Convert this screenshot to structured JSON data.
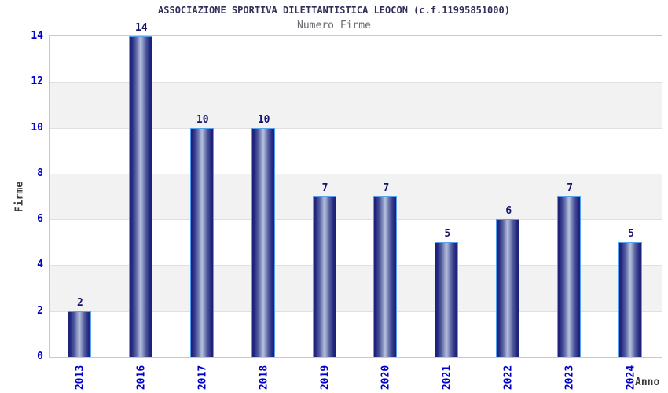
{
  "title": "ASSOCIAZIONE SPORTIVA DILETTANTISTICA LEOCON (c.f.11995851000)",
  "subtitle": "Numero Firme",
  "chart_data": {
    "type": "bar",
    "title": "ASSOCIAZIONE SPORTIVA DILETTANTISTICA LEOCON (c.f.11995851000)",
    "subtitle": "Numero Firme",
    "categories": [
      "2013",
      "2016",
      "2017",
      "2018",
      "2019",
      "2020",
      "2021",
      "2022",
      "2023",
      "2024"
    ],
    "values": [
      2,
      14,
      10,
      10,
      7,
      7,
      5,
      6,
      7,
      5
    ],
    "xlabel": "Anno",
    "ylabel": "Firme",
    "ylim": [
      0,
      14
    ],
    "ytick_step": 2,
    "yticks": [
      0,
      2,
      4,
      6,
      8,
      10,
      12,
      14
    ],
    "legend": "none",
    "grid": "alternating horizontal gray bands every 2 units",
    "bar_labels_shown": true,
    "x_tick_rotation_degrees": 90
  },
  "colors": {
    "background": "#ffffff",
    "band_gray": "#f2f2f2",
    "gridline": "#e0e0e0",
    "plot_border": "#c9c9c9",
    "bar_edge_dark": "#1b1f76",
    "bar_center_light": "#b6c0de",
    "bar_outline": "#58a0f0",
    "tick_label_blue": "#0000cd",
    "value_label_navy": "#14146e",
    "title_navy": "#30305a",
    "subtitle_gray": "#6a6a72",
    "axis_title_gray": "#3a3a3a"
  }
}
